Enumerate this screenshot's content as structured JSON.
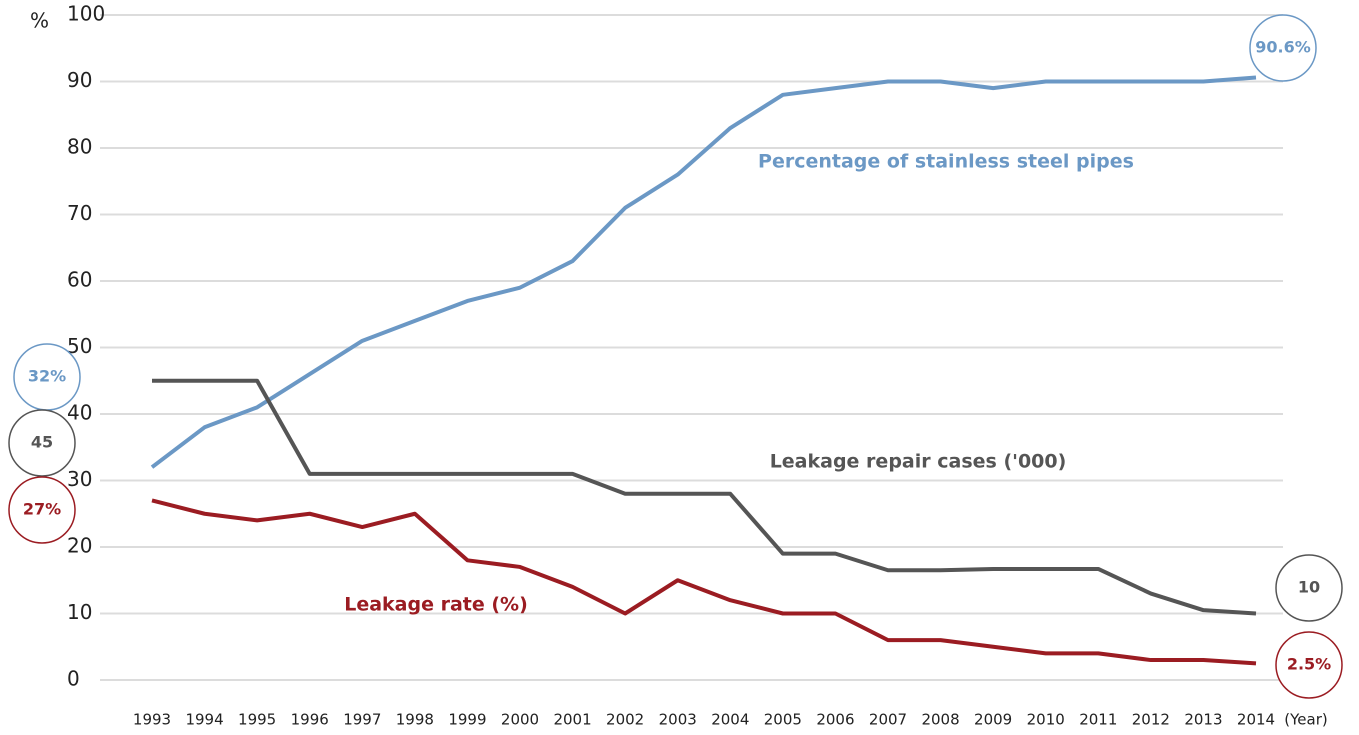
{
  "chart_data": {
    "type": "line",
    "ylabel": "%",
    "xlabel": "(Year)",
    "categories": [
      "1993",
      "1994",
      "1995",
      "1996",
      "1997",
      "1998",
      "1999",
      "2000",
      "2001",
      "2002",
      "2003",
      "2004",
      "2005",
      "2006",
      "2007",
      "2008",
      "2009",
      "2010",
      "2011",
      "2012",
      "2013",
      "2014"
    ],
    "series": [
      {
        "name": "Percentage of stainless steel pipes",
        "color": "#6b98c5",
        "values": [
          32,
          38,
          41,
          46,
          51,
          54,
          57,
          59,
          63,
          71,
          76,
          83,
          88,
          89,
          90,
          90,
          89,
          90,
          90,
          90,
          90,
          90.6
        ],
        "value_labels": [
          "32%",
          null,
          null,
          null,
          null,
          null,
          null,
          null,
          null,
          null,
          null,
          null,
          null,
          null,
          null,
          null,
          null,
          null,
          null,
          null,
          null,
          "90.6%"
        ]
      },
      {
        "name": "Leakage repair cases ('000)",
        "color": "#555555",
        "values": [
          45,
          45,
          45,
          31,
          31,
          31,
          31,
          31,
          31,
          28,
          28,
          28,
          19,
          19,
          16.5,
          16.5,
          16.7,
          16.7,
          16.7,
          13,
          10.5,
          10
        ],
        "value_labels": [
          "45",
          null,
          null,
          null,
          null,
          null,
          null,
          null,
          null,
          null,
          null,
          null,
          null,
          null,
          null,
          null,
          null,
          null,
          null,
          null,
          null,
          "10"
        ]
      },
      {
        "name": "Leakage rate (%)",
        "color": "#9b1c22",
        "values": [
          27,
          25,
          24,
          25,
          23,
          25,
          18,
          17,
          14,
          10,
          15,
          12,
          10,
          10,
          6,
          6,
          5,
          4,
          4,
          3,
          3,
          2.5
        ],
        "value_labels": [
          "27%",
          null,
          null,
          null,
          null,
          null,
          null,
          null,
          null,
          null,
          null,
          null,
          null,
          null,
          null,
          null,
          null,
          null,
          null,
          null,
          null,
          "2.5%"
        ]
      }
    ],
    "ylim": [
      0,
      100
    ],
    "yticks": [
      0,
      10,
      20,
      30,
      40,
      50,
      60,
      70,
      80,
      90,
      100
    ],
    "grid": true
  }
}
